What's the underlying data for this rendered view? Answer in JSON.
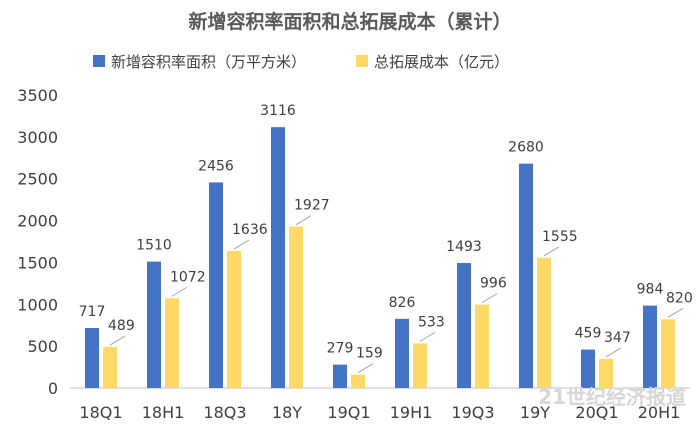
{
  "chart_data": {
    "type": "bar",
    "title": "新增容积率面积和总拓展成本（累计）",
    "categories": [
      "18Q1",
      "18H1",
      "18Q3",
      "18Y",
      "19Q1",
      "19H1",
      "19Q3",
      "19Y",
      "20Q1",
      "20H1"
    ],
    "series": [
      {
        "name": "新增容积率面积（万平方米）",
        "color": "#4472C4",
        "values": [
          717,
          1510,
          2456,
          3116,
          279,
          826,
          1493,
          2680,
          459,
          984
        ]
      },
      {
        "name": "总拓展成本（亿元）",
        "color": "#FFD966",
        "values": [
          489,
          1072,
          1636,
          1927,
          159,
          533,
          996,
          1555,
          347,
          820
        ]
      }
    ],
    "ylim": [
      0,
      3500
    ],
    "yticks": [
      0,
      500,
      1000,
      1500,
      2000,
      2500,
      3000,
      3500
    ],
    "grid": false,
    "legend_position": "top",
    "watermark": "21世纪经济报道"
  }
}
